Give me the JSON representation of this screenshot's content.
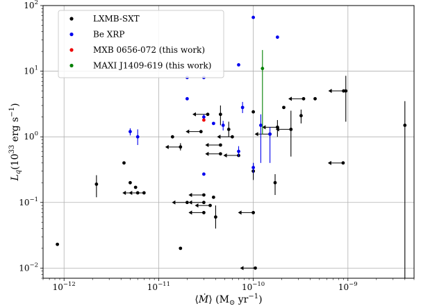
{
  "chart_data": {
    "type": "scatter",
    "x_scale": "log",
    "y_scale": "log",
    "grid": true,
    "legend_position": "top-left",
    "xlim": [
      6e-13,
      5e-09
    ],
    "ylim": [
      0.007,
      100
    ],
    "x_ticks": [
      {
        "value": 1e-12,
        "base": "10",
        "exp": "−12"
      },
      {
        "value": 1e-11,
        "base": "10",
        "exp": "−11"
      },
      {
        "value": 1e-10,
        "base": "10",
        "exp": "−10"
      },
      {
        "value": 1e-09,
        "base": "10",
        "exp": "−9"
      }
    ],
    "y_ticks": [
      {
        "value": 0.01,
        "base": "10",
        "exp": "−2"
      },
      {
        "value": 0.1,
        "base": "10",
        "exp": "−1"
      },
      {
        "value": 1,
        "base": "10",
        "exp": "0"
      },
      {
        "value": 10,
        "base": "10",
        "exp": "1"
      },
      {
        "value": 100,
        "base": "10",
        "exp": "2"
      }
    ],
    "xlabel": {
      "pre": "⟨",
      "var": "Ṁ",
      "post": "⟩ (M",
      "sub": "⊙",
      "post2": " yr",
      "sup": "−1",
      "end": ")"
    },
    "ylabel": {
      "var": "L",
      "sub": "q",
      "pre2": "(10",
      "sup": "33",
      "mid": " erg s",
      "sup2": "−1",
      "end": ")"
    },
    "series": [
      {
        "name": "LXMB-SXT",
        "color": "#000000",
        "points": [
          {
            "x": 8.5e-13,
            "y": 0.023
          },
          {
            "x": 2.2e-12,
            "y": 0.19,
            "ylo": 0.12,
            "yhi": 0.26
          },
          {
            "x": 4.3e-12,
            "y": 0.4
          },
          {
            "x": 5e-12,
            "y": 0.2
          },
          {
            "x": 5.7e-12,
            "y": 0.17
          },
          {
            "x": 7e-12,
            "y": 0.14,
            "upper_x": true
          },
          {
            "x": 6e-12,
            "y": 0.14,
            "upper_x": true
          },
          {
            "x": 1.4e-11,
            "y": 1.0
          },
          {
            "x": 1.7e-11,
            "y": 0.7,
            "ylo": 0.62,
            "yhi": 0.8,
            "upper_x": true
          },
          {
            "x": 1.7e-11,
            "y": 0.02
          },
          {
            "x": 2e-11,
            "y": 0.1,
            "upper_x": true
          },
          {
            "x": 2.8e-11,
            "y": 1.2,
            "upper_x": true
          },
          {
            "x": 3e-11,
            "y": 0.13,
            "upper_x": true
          },
          {
            "x": 3e-11,
            "y": 0.1,
            "upper_x": true
          },
          {
            "x": 3e-11,
            "y": 0.07,
            "upper_x": true
          },
          {
            "x": 3.3e-11,
            "y": 2.2,
            "upper_x": true
          },
          {
            "x": 3.5e-11,
            "y": 0.09,
            "upper_x": true
          },
          {
            "x": 3.8e-11,
            "y": 0.12
          },
          {
            "x": 4e-11,
            "y": 0.06,
            "ylo": 0.04,
            "yhi": 0.09
          },
          {
            "x": 4.5e-11,
            "y": 2.2,
            "ylo": 1.5,
            "yhi": 3.0
          },
          {
            "x": 4.5e-11,
            "y": 0.75,
            "upper_x": true
          },
          {
            "x": 4.5e-11,
            "y": 0.55,
            "upper_x": true
          },
          {
            "x": 5.5e-11,
            "y": 1.3,
            "ylo": 1.0,
            "yhi": 1.7
          },
          {
            "x": 6e-11,
            "y": 1.0,
            "upper_x": true
          },
          {
            "x": 7e-11,
            "y": 0.52,
            "upper_x": true
          },
          {
            "x": 1e-10,
            "y": 2.4
          },
          {
            "x": 1e-10,
            "y": 0.07,
            "upper_x": true
          },
          {
            "x": 1e-10,
            "y": 0.3,
            "ylo": 0.22,
            "yhi": 0.4
          },
          {
            "x": 1.05e-10,
            "y": 0.01,
            "upper_x": true
          },
          {
            "x": 1.5e-10,
            "y": 1.1,
            "upper_x": true
          },
          {
            "x": 1.7e-10,
            "y": 0.2,
            "ylo": 0.13,
            "yhi": 0.27
          },
          {
            "x": 1.8e-10,
            "y": 1.4,
            "ylo": 1.0,
            "yhi": 1.8,
            "upper_x": true
          },
          {
            "x": 2.1e-10,
            "y": 2.8
          },
          {
            "x": 2.5e-10,
            "y": 1.3,
            "ylo": 0.5,
            "yhi": 2.5,
            "upper_x": true
          },
          {
            "x": 3.2e-10,
            "y": 2.1,
            "ylo": 1.6,
            "yhi": 2.6
          },
          {
            "x": 3.4e-10,
            "y": 3.8,
            "upper_x": true
          },
          {
            "x": 4.5e-10,
            "y": 3.8
          },
          {
            "x": 8.9e-10,
            "y": 0.4,
            "upper_x": true
          },
          {
            "x": 9e-10,
            "y": 5.0,
            "upper_x": true
          },
          {
            "x": 9.5e-10,
            "y": 5.0,
            "ylo": 1.7,
            "yhi": 8.5
          },
          {
            "x": 4e-09,
            "y": 1.5,
            "ylo": 0.007,
            "yhi": 3.5
          }
        ]
      },
      {
        "name": "Be XRP",
        "color": "#0000ee",
        "points": [
          {
            "x": 5e-12,
            "y": 1.2,
            "ylo": 1.05,
            "yhi": 1.35
          },
          {
            "x": 6e-12,
            "y": 1.0,
            "ylo": 0.75,
            "yhi": 1.3
          },
          {
            "x": 2e-11,
            "y": 3.8
          },
          {
            "x": 2e-11,
            "y": 8.0
          },
          {
            "x": 3e-11,
            "y": 2.0,
            "ylo": 1.8,
            "yhi": 2.2
          },
          {
            "x": 3e-11,
            "y": 0.27
          },
          {
            "x": 3e-11,
            "y": 8.0
          },
          {
            "x": 3.8e-11,
            "y": 1.6
          },
          {
            "x": 4.8e-11,
            "y": 1.5,
            "ylo": 1.25,
            "yhi": 1.75
          },
          {
            "x": 7e-11,
            "y": 12.5
          },
          {
            "x": 7e-11,
            "y": 0.6,
            "ylo": 0.5,
            "yhi": 0.72
          },
          {
            "x": 7.7e-11,
            "y": 2.8,
            "ylo": 2.3,
            "yhi": 3.4
          },
          {
            "x": 1e-10,
            "y": 66.0
          },
          {
            "x": 1e-10,
            "y": 0.34,
            "ylo": 0.28,
            "yhi": 0.4
          },
          {
            "x": 1.2e-10,
            "y": 1.5,
            "ylo": 0.4,
            "yhi": 2.2
          },
          {
            "x": 1.5e-10,
            "y": 1.1,
            "ylo": 0.4,
            "yhi": 1.4
          },
          {
            "x": 1.8e-10,
            "y": 33.0
          }
        ]
      },
      {
        "name": "MXB 0656-072 (this work)",
        "color": "#ee0000",
        "points": [
          {
            "x": 3e-11,
            "y": 1.8
          }
        ]
      },
      {
        "name": "MAXI J1409-619 (this work)",
        "color": "#008000",
        "points": [
          {
            "x": 1.25e-10,
            "y": 11.0,
            "ylo": 1.1,
            "yhi": 21.0
          }
        ]
      }
    ]
  }
}
